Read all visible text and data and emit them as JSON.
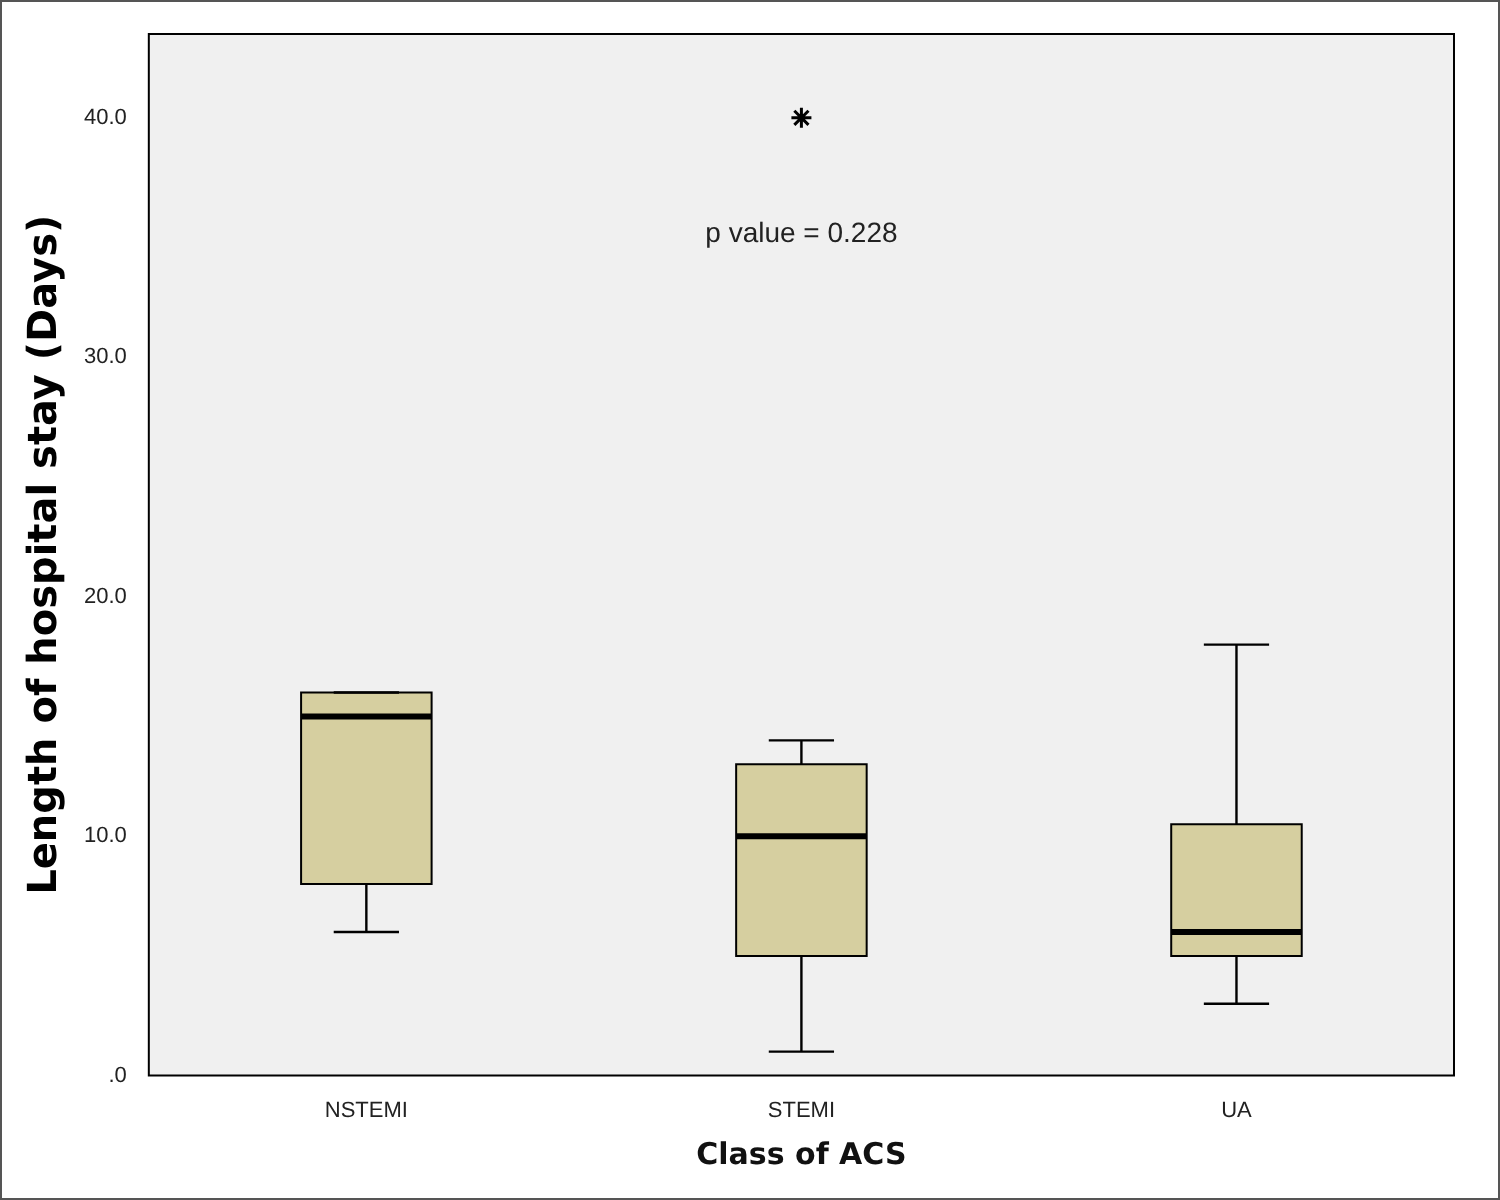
{
  "chart_data": {
    "type": "box",
    "xlabel": "Class of ACS",
    "ylabel": "Length of hospital stay (Days)",
    "categories": [
      "NSTEMI",
      "STEMI",
      "UA"
    ],
    "series": [
      {
        "color": "#d6cfa0",
        "boxes": [
          {
            "low": 6,
            "q1": 8,
            "median": 15,
            "q3": 16,
            "high": 16
          },
          {
            "low": 1,
            "q1": 5,
            "median": 10,
            "q3": 13,
            "high": 14,
            "outliers": [
              40
            ]
          },
          {
            "low": 3,
            "q1": 5,
            "median": 6,
            "q3": 10.5,
            "high": 18
          }
        ]
      }
    ],
    "ylim": [
      0,
      43.5
    ],
    "yticks": [
      {
        "value": 0,
        "label": ".0"
      },
      {
        "value": 10,
        "label": "10.0"
      },
      {
        "value": 20,
        "label": "20.0"
      },
      {
        "value": 30,
        "label": "30.0"
      },
      {
        "value": 40,
        "label": "40.0"
      }
    ],
    "annotations": [
      "p value = 0.228"
    ],
    "marker": "star",
    "grid": false,
    "legend": false
  }
}
